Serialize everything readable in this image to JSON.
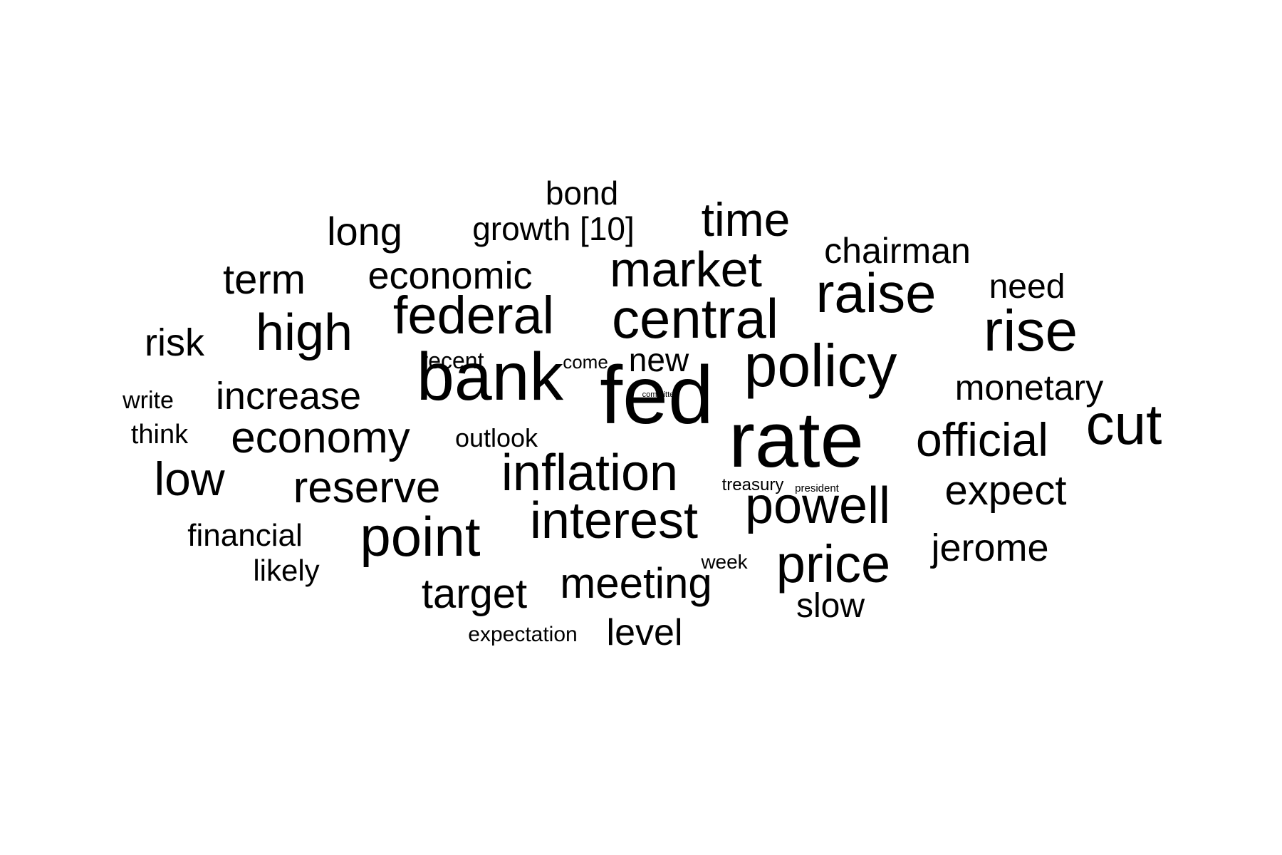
{
  "chart_data": {
    "type": "wordcloud",
    "words": [
      {
        "text": "fed",
        "weight": 100
      },
      {
        "text": "rate",
        "weight": 92
      },
      {
        "text": "bank",
        "weight": 78
      },
      {
        "text": "policy",
        "weight": 70
      },
      {
        "text": "rise",
        "weight": 68
      },
      {
        "text": "cut",
        "weight": 66
      },
      {
        "text": "central",
        "weight": 64
      },
      {
        "text": "raise",
        "weight": 64
      },
      {
        "text": "point",
        "weight": 64
      },
      {
        "text": "federal",
        "weight": 60
      },
      {
        "text": "price",
        "weight": 60
      },
      {
        "text": "interest",
        "weight": 58
      },
      {
        "text": "inflation",
        "weight": 58
      },
      {
        "text": "high",
        "weight": 58
      },
      {
        "text": "powell",
        "weight": 58
      },
      {
        "text": "market",
        "weight": 56
      },
      {
        "text": "official",
        "weight": 54
      },
      {
        "text": "low",
        "weight": 54
      },
      {
        "text": "time",
        "weight": 53
      },
      {
        "text": "economy",
        "weight": 50
      },
      {
        "text": "reserve",
        "weight": 50
      },
      {
        "text": "meeting",
        "weight": 48
      },
      {
        "text": "target",
        "weight": 47
      },
      {
        "text": "expect",
        "weight": 47
      },
      {
        "text": "term",
        "weight": 47
      },
      {
        "text": "long",
        "weight": 45
      },
      {
        "text": "economic",
        "weight": 43
      },
      {
        "text": "increase",
        "weight": 43
      },
      {
        "text": "risk",
        "weight": 43
      },
      {
        "text": "jerome",
        "weight": 42
      },
      {
        "text": "level",
        "weight": 41
      },
      {
        "text": "monetary",
        "weight": 40
      },
      {
        "text": "chairman",
        "weight": 40
      },
      {
        "text": "need",
        "weight": 39
      },
      {
        "text": "slow",
        "weight": 39
      },
      {
        "text": "new",
        "weight": 38
      },
      {
        "text": "bond",
        "weight": 37
      },
      {
        "text": "growth [10]",
        "weight": 37
      },
      {
        "text": "financial",
        "weight": 35
      },
      {
        "text": "likely",
        "weight": 33
      },
      {
        "text": "think",
        "weight": 31
      },
      {
        "text": "outlook",
        "weight": 30
      },
      {
        "text": "write",
        "weight": 28
      },
      {
        "text": "recent",
        "weight": 26
      },
      {
        "text": "expectation",
        "weight": 25
      },
      {
        "text": "week",
        "weight": 24
      },
      {
        "text": "come",
        "weight": 21
      },
      {
        "text": "treasury",
        "weight": 20
      },
      {
        "text": "president",
        "weight": 14
      },
      {
        "text": "committee",
        "weight": 10
      }
    ]
  }
}
